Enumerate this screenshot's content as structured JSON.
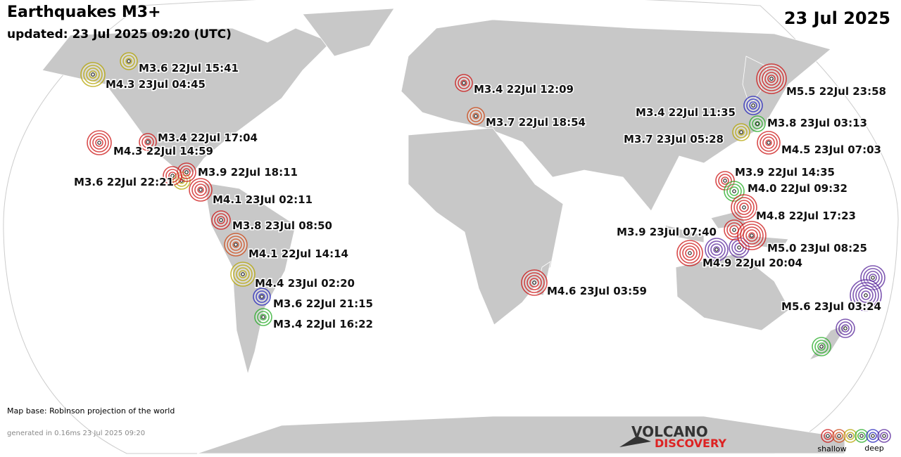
{
  "header": {
    "title": "Earthquakes M3+",
    "updated": "updated: 23 Jul 2025 09:20 (UTC)",
    "date": "23 Jul 2025"
  },
  "quakes": [
    {
      "label": "M3.6 22Jul 15:41",
      "color": "#b5a400"
    },
    {
      "label": "M4.3 23Jul 04:45",
      "color": "#b5a400"
    },
    {
      "label": "M3.4 22Jul 12:09",
      "color": "#cc1111"
    },
    {
      "label": "M5.5 22Jul 23:58",
      "color": "#cc1111"
    },
    {
      "label": "M3.4 22Jul 11:35",
      "color": "#2222bb"
    },
    {
      "label": "M3.8 23Jul 03:13",
      "color": "#22aa22"
    },
    {
      "label": "M3.7 22Jul 18:54",
      "color": "#cc4411"
    },
    {
      "label": "M3.7 23Jul 05:28",
      "color": "#b5a400"
    },
    {
      "label": "M4.5 23Jul 07:03",
      "color": "#cc1111"
    },
    {
      "label": "M3.4 22Jul 17:04",
      "color": "#cc1111"
    },
    {
      "label": "M4.3 22Jul 14:59",
      "color": "#cc1111"
    },
    {
      "label": "M3.9 22Jul 18:11",
      "color": "#cc1111"
    },
    {
      "label": "M3.6 22Jul 22:21",
      "color": "#cc1111"
    },
    {
      "label": "M4.1 23Jul 02:11",
      "color": "#cc1111"
    },
    {
      "label": "M3.8 23Jul 08:50",
      "color": "#cc1111"
    },
    {
      "label": "M4.1 22Jul 14:14",
      "color": "#cc4411"
    },
    {
      "label": "M4.4 23Jul 02:20",
      "color": "#b5a400"
    },
    {
      "label": "M3.6 22Jul 21:15",
      "color": "#2222bb"
    },
    {
      "label": "M3.4 22Jul 16:22",
      "color": "#22aa22"
    },
    {
      "label": "M4.6 23Jul 03:59",
      "color": "#cc1111"
    },
    {
      "label": "M3.9 22Jul 14:35",
      "color": "#cc1111"
    },
    {
      "label": "M4.0 22Jul 09:32",
      "color": "#22aa22"
    },
    {
      "label": "M4.8 22Jul 17:23",
      "color": "#cc1111"
    },
    {
      "label": "M3.9 23Jul 07:40",
      "color": "#cc1111"
    },
    {
      "label": "M5.0 23Jul 08:25",
      "color": "#cc1111"
    },
    {
      "label": "M4.9 22Jul 20:04",
      "color": "#cc1111"
    },
    {
      "label": "M5.6 23Jul 03:24",
      "color": "#552299"
    }
  ],
  "footer": {
    "map_base": "Map base: Robinson projection of the world",
    "generated": "generated in 0.16ms 23 Jul 2025 09:20",
    "logo_top": "VOLCANO",
    "logo_bottom": "DISCOVERY",
    "legend_shallow": "shallow",
    "legend_deep": "deep"
  }
}
